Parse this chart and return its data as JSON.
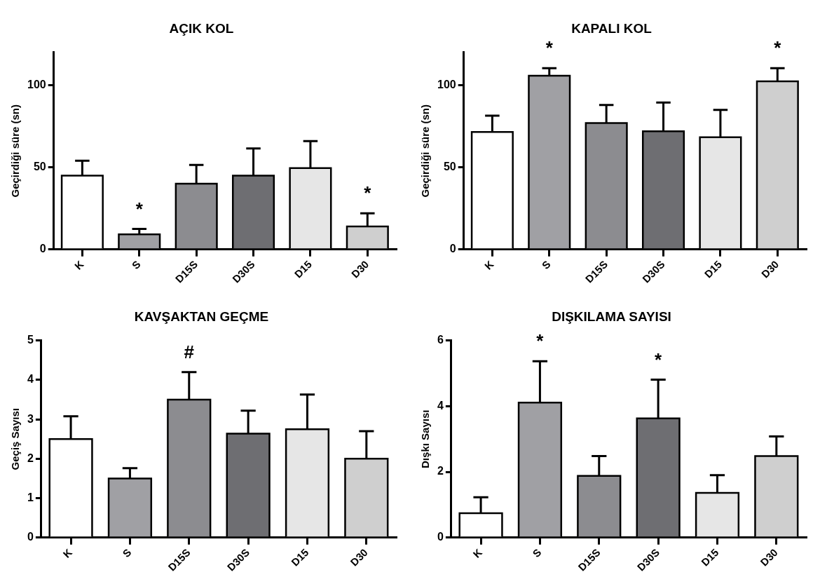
{
  "chart_data": [
    {
      "type": "bar",
      "title": "AÇIK KOL",
      "ylabel": "Geçirdiği süre (sn)",
      "categories": [
        "K",
        "S",
        "D15S",
        "D30S",
        "D15",
        "D30"
      ],
      "values": [
        45,
        9.2,
        40,
        45,
        49.5,
        14
      ],
      "errors": [
        [
          45,
          54
        ],
        [
          9.2,
          12.5
        ],
        [
          40,
          51.5
        ],
        [
          45,
          61.5
        ],
        [
          49.5,
          66
        ],
        [
          14,
          22
        ]
      ],
      "colors": [
        "#ffffff",
        "#a0a0a4",
        "#8c8c90",
        "#6e6e72",
        "#e6e6e6",
        "#cfcfcf"
      ],
      "ylim": [
        0,
        120
      ],
      "yticks": [
        0,
        50,
        100
      ],
      "grid": false,
      "legend": false,
      "annotations": [
        {
          "text": "*",
          "x": "S",
          "y": 12.5
        },
        {
          "text": "*",
          "x": "D30",
          "y": 22
        }
      ]
    },
    {
      "type": "bar",
      "title": "KAPALI KOL",
      "ylabel": "Geçirdiği süre (sn)",
      "categories": [
        "K",
        "S",
        "D15S",
        "D30S",
        "D15",
        "D30"
      ],
      "values": [
        71.5,
        105.8,
        77,
        72,
        68.3,
        102.4
      ],
      "errors": [
        [
          71.5,
          81.5
        ],
        [
          105.8,
          110.4
        ],
        [
          77,
          88
        ],
        [
          72,
          89.5
        ],
        [
          68.3,
          85
        ],
        [
          102.4,
          110.4
        ]
      ],
      "colors": [
        "#ffffff",
        "#a0a0a4",
        "#8c8c90",
        "#6e6e72",
        "#e6e6e6",
        "#cfcfcf"
      ],
      "ylim": [
        0,
        120
      ],
      "yticks": [
        0,
        50,
        100
      ],
      "grid": false,
      "legend": false,
      "annotations": [
        {
          "text": "*",
          "x": "S",
          "y": 110.4
        },
        {
          "text": "*",
          "x": "D30",
          "y": 110.4
        }
      ]
    },
    {
      "type": "bar",
      "title": "KAVŞAKTAN GEÇME",
      "ylabel": "Geçiş Sayısı",
      "categories": [
        "K",
        "S",
        "D15S",
        "D30S",
        "D15",
        "D30"
      ],
      "values": [
        2.5,
        1.5,
        3.5,
        2.64,
        2.75,
        2
      ],
      "errors": [
        [
          2.5,
          3.08
        ],
        [
          1.5,
          1.76
        ],
        [
          3.5,
          4.2
        ],
        [
          2.64,
          3.22
        ],
        [
          2.75,
          3.63
        ],
        [
          2,
          2.7
        ]
      ],
      "colors": [
        "#ffffff",
        "#a0a0a4",
        "#8c8c90",
        "#6e6e72",
        "#e6e6e6",
        "#cfcfcf"
      ],
      "ylim": [
        0,
        5
      ],
      "yticks": [
        0,
        1,
        2,
        3,
        4,
        5
      ],
      "grid": false,
      "legend": false,
      "annotations": [
        {
          "text": "#",
          "x": "D15S",
          "y": 4.2
        }
      ]
    },
    {
      "type": "bar",
      "title": "DIŞKILAMA SAYISI",
      "ylabel": "Dışkı Sayısı",
      "categories": [
        "K",
        "S",
        "D15S",
        "D30S",
        "D15",
        "D30"
      ],
      "values": [
        0.74,
        4.11,
        1.88,
        3.63,
        1.36,
        2.48
      ],
      "errors": [
        [
          0.74,
          1.23
        ],
        [
          4.11,
          5.37
        ],
        [
          1.88,
          2.48
        ],
        [
          3.63,
          4.81
        ],
        [
          1.36,
          1.9
        ],
        [
          2.48,
          3.08
        ]
      ],
      "colors": [
        "#ffffff",
        "#a0a0a4",
        "#8c8c90",
        "#6e6e72",
        "#e6e6e6",
        "#cfcfcf"
      ],
      "ylim": [
        0,
        6
      ],
      "yticks": [
        0,
        2,
        4,
        6
      ],
      "grid": false,
      "legend": false,
      "annotations": [
        {
          "text": "*",
          "x": "S",
          "y": 5.37
        },
        {
          "text": "*",
          "x": "D30S",
          "y": 4.81
        }
      ]
    }
  ]
}
